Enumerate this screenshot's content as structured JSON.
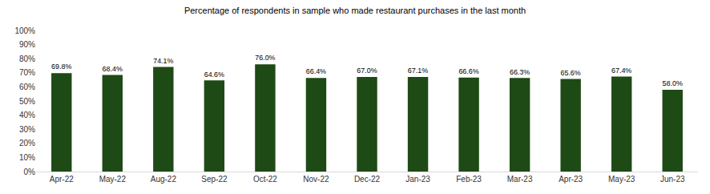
{
  "chart_data": {
    "type": "bar",
    "title": "Percentage of respondents in sample who made restaurant purchases in the last month",
    "categories": [
      "Apr-22",
      "May-22",
      "Aug-22",
      "Sep-22",
      "Oct-22",
      "Nov-22",
      "Dec-22",
      "Jan-23",
      "Feb-23",
      "Mar-23",
      "Apr-23",
      "May-23",
      "Jun-23"
    ],
    "values": [
      69.8,
      68.4,
      74.1,
      64.6,
      76.0,
      66.4,
      67.0,
      67.1,
      66.6,
      66.3,
      65.6,
      67.4,
      58.0
    ],
    "value_labels": [
      "69.8%",
      "68.4%",
      "74.1%",
      "64.6%",
      "76.0%",
      "66.4%",
      "67.0%",
      "67.1%",
      "66.6%",
      "66.3%",
      "65.6%",
      "67.4%",
      "58.0%"
    ],
    "color": "#1e4a15",
    "ylim": [
      0,
      100
    ],
    "yticks": [
      {
        "value": 0,
        "label": "0%"
      },
      {
        "value": 10,
        "label": "10%"
      },
      {
        "value": 20,
        "label": "20%"
      },
      {
        "value": 30,
        "label": "30%"
      },
      {
        "value": 40,
        "label": "40%"
      },
      {
        "value": 50,
        "label": "50%"
      },
      {
        "value": 60,
        "label": "60%"
      },
      {
        "value": 70,
        "label": "70%"
      },
      {
        "value": 80,
        "label": "80%"
      },
      {
        "value": 90,
        "label": "90%"
      },
      {
        "value": 100,
        "label": "100%"
      }
    ],
    "grid": false,
    "data_labels": true
  }
}
